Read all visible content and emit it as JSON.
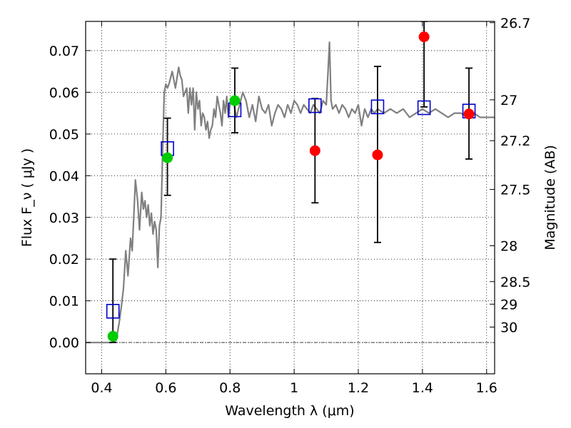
{
  "chart_data": {
    "type": "scatter",
    "title": "",
    "xlabel": "Wavelength  λ (μm)",
    "ylabel": "Flux  F_ν  ( μJy )",
    "y2label": "Magnitude (AB)",
    "xlim": [
      0.35,
      1.625
    ],
    "ylim": [
      -0.0075,
      0.077
    ],
    "grid": true,
    "legend": "none",
    "x_ticks": [
      0.4,
      0.6,
      0.8,
      1.0,
      1.2,
      1.4,
      1.6
    ],
    "x_tick_labels": [
      "0.4",
      "0.6",
      "0.8",
      "1",
      "1.2",
      "1.4",
      "1.6"
    ],
    "y_ticks": [
      0.0,
      0.01,
      0.02,
      0.03,
      0.04,
      0.05,
      0.06,
      0.07
    ],
    "y_tick_labels": [
      "0.00",
      "0.01",
      "0.02",
      "0.03",
      "0.04",
      "0.05",
      "0.06",
      "0.07"
    ],
    "y2_ticks": [
      {
        "label": "26.7",
        "flux": 0.0767
      },
      {
        "label": "27",
        "flux": 0.0582
      },
      {
        "label": "27.2",
        "flux": 0.0484
      },
      {
        "label": "27.5",
        "flux": 0.0367
      },
      {
        "label": "28",
        "flux": 0.0232
      },
      {
        "label": "28.5",
        "flux": 0.0146
      },
      {
        "label": "29",
        "flux": 0.0092
      },
      {
        "label": "30",
        "flux": 0.0037
      }
    ],
    "series": [
      {
        "kind": "line",
        "color": "#808080",
        "x": [
          0.35,
          0.43,
          0.445,
          0.455,
          0.462,
          0.468,
          0.475,
          0.482,
          0.49,
          0.495,
          0.5,
          0.505,
          0.512,
          0.518,
          0.525,
          0.53,
          0.535,
          0.54,
          0.545,
          0.55,
          0.555,
          0.56,
          0.565,
          0.57,
          0.575,
          0.58,
          0.585,
          0.59,
          0.595,
          0.6,
          0.605,
          0.61,
          0.62,
          0.63,
          0.64,
          0.645,
          0.65,
          0.655,
          0.66,
          0.665,
          0.67,
          0.675,
          0.68,
          0.685,
          0.69,
          0.695,
          0.7,
          0.705,
          0.71,
          0.715,
          0.72,
          0.725,
          0.73,
          0.735,
          0.74,
          0.745,
          0.75,
          0.755,
          0.76,
          0.765,
          0.77,
          0.775,
          0.78,
          0.785,
          0.79,
          0.795,
          0.8,
          0.81,
          0.82,
          0.83,
          0.84,
          0.85,
          0.86,
          0.87,
          0.88,
          0.89,
          0.9,
          0.91,
          0.92,
          0.93,
          0.94,
          0.95,
          0.96,
          0.97,
          0.98,
          0.99,
          1.0,
          1.01,
          1.02,
          1.03,
          1.04,
          1.05,
          1.06,
          1.07,
          1.08,
          1.09,
          1.1,
          1.105,
          1.11,
          1.115,
          1.12,
          1.13,
          1.14,
          1.15,
          1.16,
          1.17,
          1.18,
          1.19,
          1.2,
          1.21,
          1.22,
          1.23,
          1.24,
          1.25,
          1.26,
          1.28,
          1.3,
          1.32,
          1.34,
          1.36,
          1.38,
          1.4,
          1.42,
          1.44,
          1.46,
          1.48,
          1.5,
          1.52,
          1.54,
          1.56,
          1.58,
          1.6,
          1.625
        ],
        "y": [
          0.0,
          0.0,
          0.0005,
          0.005,
          0.009,
          0.013,
          0.022,
          0.016,
          0.025,
          0.022,
          0.03,
          0.039,
          0.034,
          0.027,
          0.036,
          0.032,
          0.034,
          0.03,
          0.033,
          0.028,
          0.031,
          0.026,
          0.029,
          0.027,
          0.018,
          0.028,
          0.03,
          0.046,
          0.06,
          0.062,
          0.061,
          0.062,
          0.065,
          0.061,
          0.066,
          0.064,
          0.063,
          0.059,
          0.06,
          0.061,
          0.055,
          0.061,
          0.057,
          0.061,
          0.051,
          0.06,
          0.056,
          0.058,
          0.052,
          0.055,
          0.054,
          0.051,
          0.053,
          0.049,
          0.051,
          0.052,
          0.056,
          0.054,
          0.059,
          0.057,
          0.055,
          0.052,
          0.058,
          0.055,
          0.059,
          0.054,
          0.057,
          0.058,
          0.054,
          0.057,
          0.06,
          0.058,
          0.054,
          0.057,
          0.053,
          0.059,
          0.056,
          0.055,
          0.057,
          0.052,
          0.055,
          0.057,
          0.056,
          0.054,
          0.057,
          0.055,
          0.058,
          0.057,
          0.055,
          0.057,
          0.056,
          0.055,
          0.057,
          0.056,
          0.055,
          0.058,
          0.057,
          0.064,
          0.072,
          0.058,
          0.056,
          0.057,
          0.055,
          0.057,
          0.056,
          0.054,
          0.056,
          0.055,
          0.057,
          0.052,
          0.056,
          0.054,
          0.056,
          0.055,
          0.056,
          0.055,
          0.056,
          0.055,
          0.056,
          0.054,
          0.055,
          0.056,
          0.055,
          0.056,
          0.055,
          0.054,
          0.055,
          0.055,
          0.054,
          0.055,
          0.054,
          0.054,
          0.054
        ]
      },
      {
        "kind": "markers",
        "marker": "square",
        "color": "#0000cc",
        "x": [
          0.435,
          0.605,
          0.815,
          1.065,
          1.26,
          1.405,
          1.545
        ],
        "y": [
          0.0075,
          0.0465,
          0.0558,
          0.0568,
          0.0565,
          0.0563,
          0.0555
        ]
      },
      {
        "kind": "markers",
        "marker": "circle",
        "color": "#00cc00",
        "x": [
          0.435,
          0.605,
          0.815
        ],
        "y": [
          0.0015,
          0.0443,
          0.058
        ],
        "yerr_low": [
          0.0,
          0.0353,
          0.0503
        ],
        "yerr_high": [
          0.02,
          0.0538,
          0.0658
        ]
      },
      {
        "kind": "markers",
        "marker": "circle",
        "color": "#ff0000",
        "x": [
          1.065,
          1.26,
          1.405,
          1.545
        ],
        "y": [
          0.046,
          0.045,
          0.0733,
          0.0548
        ],
        "yerr_low": [
          0.0335,
          0.024,
          0.0565,
          0.044
        ],
        "yerr_high": [
          0.0585,
          0.0662,
          0.077,
          0.0658
        ]
      }
    ]
  }
}
